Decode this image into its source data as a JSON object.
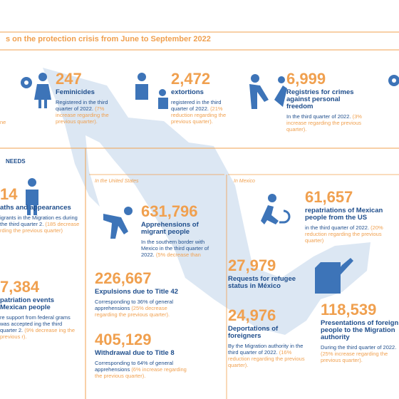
{
  "header": {
    "title": "s on the protection crisis from June to September 2022",
    "fragment": "ne"
  },
  "top": [
    {
      "number": "247",
      "label": "Feminicides",
      "detail": "Registered in the third quarter of 2022.",
      "change": "(7% increase regarding the previous quarter)."
    },
    {
      "number": "2,472",
      "label": "extortions",
      "detail": "registered in the third quarter of 2022.",
      "change": "(21% reduction regarding the previous quarter)."
    },
    {
      "number": "6,999",
      "label": "Registries for crimes against personal freedom",
      "detail": "In the third quarter of 2022.",
      "change": "(3% increase regarding the previous quarter)."
    }
  ],
  "needs": {
    "title": "NEEDS",
    "items": [
      {
        "number": "14",
        "label": "aths and appearances",
        "detail": "igrants in the Migration es during the third quarter 2.",
        "change": "(185 decrease rding the previous quarter)"
      },
      {
        "number": "7,384",
        "label": "patriation events Mexican people",
        "detail": "re support from federal grams was accepted ing the third quarter 2.",
        "change": "(9% decrease ing the previous r)."
      }
    ]
  },
  "us": {
    "title": "In the United States",
    "items": [
      {
        "number": "631,796",
        "label": "Apprehensions of migrant people",
        "detail": "In the southern border with Mexico in the third quarter of 2022.",
        "change": "(5% decrease than"
      },
      {
        "number": "226,667",
        "label": "Expulsions due to Title 42",
        "detail": "Corresponding to 36% of general apprehensions",
        "change": "(25% decrease regarding the previous quarter)."
      },
      {
        "number": "405,129",
        "label": "Withdrawal due to Title 8",
        "detail": "Corresponding to 64% of general apprehensions",
        "change": "(6% increase regarding the previous quarter)."
      }
    ]
  },
  "mexico": {
    "title": "In Mexico",
    "items": [
      {
        "number": "61,657",
        "label": "repatriations of Mexican people from the US",
        "detail": "in the third quarter of 2022.",
        "change": "(20% reduction regarding the previous quarter)"
      },
      {
        "number": "27,979",
        "label": "Requests for refugee status in México"
      },
      {
        "number": "24,976",
        "label": "Deportations of foreigners",
        "detail": "By the Migration authority in the third quarter of 2022.",
        "change": "(16% reduction regarding the previous quarter)."
      },
      {
        "number": "118,539",
        "label": "Presentations of foreign people to the Migration authority",
        "detail": "During the third quarter of 2022.",
        "change": "(25% increase regarding the previous quarter)."
      }
    ]
  }
}
